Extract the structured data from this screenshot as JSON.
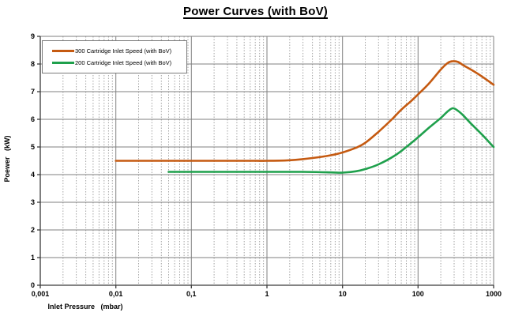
{
  "figure": {
    "title": "Power Curves (with BoV)"
  },
  "chart_data": {
    "type": "line",
    "title": "Power Curves (with BoV)",
    "xlabel": "Inlet Pressure   (mbar)",
    "ylabel": "Poewer   (kW)",
    "x_scale": "log",
    "xlim": [
      0.001,
      1000
    ],
    "ylim": [
      0,
      9
    ],
    "x_ticks": [
      0.001,
      0.01,
      0.1,
      1,
      10,
      100,
      1000
    ],
    "x_tick_labels": [
      "0,001",
      "0,01",
      "0,1",
      "1",
      "10",
      "100",
      "1000"
    ],
    "y_ticks": [
      0,
      1,
      2,
      3,
      4,
      5,
      6,
      7,
      8,
      9
    ],
    "grid": {
      "major_horizontal": true,
      "major_vertical": true,
      "minor_vertical_log": true
    },
    "legend_position": "top-left",
    "series": [
      {
        "name": "300 Cartridge Inlet Speed (with BoV)",
        "color": "#C55A11",
        "points": [
          [
            0.01,
            4.5
          ],
          [
            0.02,
            4.5
          ],
          [
            0.05,
            4.5
          ],
          [
            0.1,
            4.5
          ],
          [
            0.3,
            4.5
          ],
          [
            0.7,
            4.5
          ],
          [
            1,
            4.5
          ],
          [
            2,
            4.52
          ],
          [
            4,
            4.6
          ],
          [
            7,
            4.7
          ],
          [
            10,
            4.8
          ],
          [
            15,
            4.97
          ],
          [
            20,
            5.15
          ],
          [
            30,
            5.55
          ],
          [
            45,
            6.0
          ],
          [
            60,
            6.35
          ],
          [
            80,
            6.65
          ],
          [
            100,
            6.9
          ],
          [
            140,
            7.3
          ],
          [
            200,
            7.8
          ],
          [
            250,
            8.05
          ],
          [
            290,
            8.1
          ],
          [
            340,
            8.07
          ],
          [
            400,
            7.95
          ],
          [
            500,
            7.8
          ],
          [
            700,
            7.55
          ],
          [
            1000,
            7.25
          ]
        ]
      },
      {
        "name": "200 Cartridge Inlet Speed (with BoV)",
        "color": "#1FA04C",
        "points": [
          [
            0.05,
            4.1
          ],
          [
            0.1,
            4.1
          ],
          [
            0.3,
            4.1
          ],
          [
            1,
            4.1
          ],
          [
            3,
            4.1
          ],
          [
            7,
            4.08
          ],
          [
            10,
            4.07
          ],
          [
            15,
            4.12
          ],
          [
            20,
            4.2
          ],
          [
            30,
            4.37
          ],
          [
            50,
            4.7
          ],
          [
            70,
            5.0
          ],
          [
            100,
            5.35
          ],
          [
            140,
            5.7
          ],
          [
            200,
            6.05
          ],
          [
            250,
            6.3
          ],
          [
            290,
            6.4
          ],
          [
            340,
            6.3
          ],
          [
            400,
            6.13
          ],
          [
            500,
            5.85
          ],
          [
            700,
            5.45
          ],
          [
            1000,
            5.0
          ]
        ]
      }
    ],
    "colors": {
      "grid_major": "#7f7f7f",
      "grid_minor": "#a3a3a3",
      "axis": "#3a3a3a",
      "background": "#ffffff"
    }
  }
}
